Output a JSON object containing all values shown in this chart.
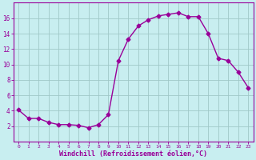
{
  "x": [
    0,
    1,
    2,
    3,
    4,
    5,
    6,
    7,
    8,
    9,
    10,
    11,
    12,
    13,
    14,
    15,
    16,
    17,
    18,
    19,
    20,
    21,
    22,
    23
  ],
  "y": [
    4.1,
    3.0,
    3.0,
    2.5,
    2.2,
    2.2,
    2.1,
    1.8,
    2.2,
    3.5,
    10.5,
    13.3,
    15.0,
    15.8,
    16.3,
    16.5,
    16.7,
    16.2,
    16.2,
    14.0,
    10.8,
    10.5,
    9.0,
    7.0
  ],
  "line_color": "#990099",
  "marker": "D",
  "markersize": 2.5,
  "linewidth": 1.0,
  "bg_color": "#c8eef0",
  "grid_color": "#a0c8c8",
  "xlabel": "Windchill (Refroidissement éolien,°C)",
  "xlabel_color": "#990099",
  "tick_color": "#990099",
  "xlim": [
    -0.5,
    23.5
  ],
  "ylim": [
    0,
    18
  ],
  "yticks": [
    2,
    4,
    6,
    8,
    10,
    12,
    14,
    16
  ],
  "xticks": [
    0,
    1,
    2,
    3,
    4,
    5,
    6,
    7,
    8,
    9,
    10,
    11,
    12,
    13,
    14,
    15,
    16,
    17,
    18,
    19,
    20,
    21,
    22,
    23
  ]
}
